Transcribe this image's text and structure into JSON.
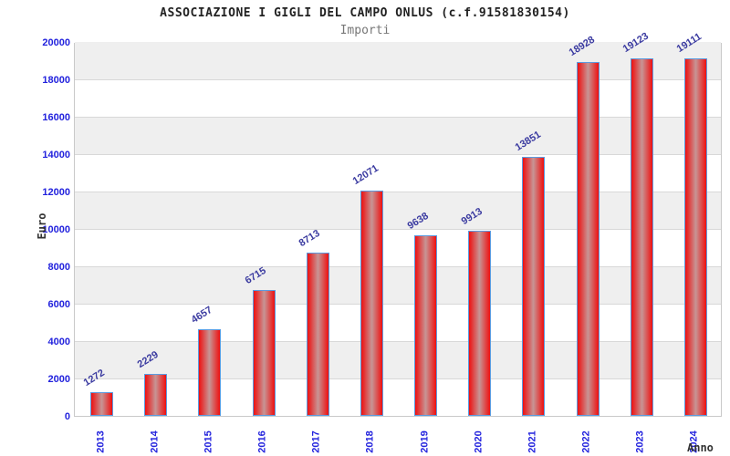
{
  "header": {
    "title": "ASSOCIAZIONE I GIGLI DEL CAMPO ONLUS (c.f.91581830154)",
    "subtitle": "Importi"
  },
  "chart_data": {
    "type": "bar",
    "title": "ASSOCIAZIONE I GIGLI DEL CAMPO ONLUS (c.f.91581830154)",
    "subtitle": "Importi",
    "categories": [
      "2013",
      "2014",
      "2015",
      "2016",
      "2017",
      "2018",
      "2019",
      "2020",
      "2021",
      "2022",
      "2023",
      "2024"
    ],
    "values": [
      1272,
      2229,
      4657,
      6715,
      8713,
      12071,
      9638,
      9913,
      13851,
      18928,
      19123,
      19111
    ],
    "xlabel": "Anno",
    "ylabel": "Euro",
    "ylim": [
      0,
      20000
    ],
    "yticks": [
      0,
      2000,
      4000,
      6000,
      8000,
      10000,
      12000,
      14000,
      16000,
      18000,
      20000
    ],
    "bar_value_labels": true,
    "grid": "horizontal-alternating-bands",
    "legend": "none",
    "x_tick_rotation_deg": -90,
    "value_label_rotation_deg": -32
  },
  "colors": {
    "bar_edge_red": "#ee1010",
    "bar_center_highlight": "#c79595",
    "bar_border_blue": "#5b9be0",
    "tick_label_blue": "#2222dd",
    "value_label_navy": "#3a3aa0",
    "band_gray": "#efefef",
    "band_white": "#ffffff",
    "grid_line_gray": "#d8d8d8",
    "plot_border_gray": "#c9c9c9",
    "title_color": "#222222",
    "subtitle_color": "#777777",
    "axis_title_color": "#333333"
  }
}
